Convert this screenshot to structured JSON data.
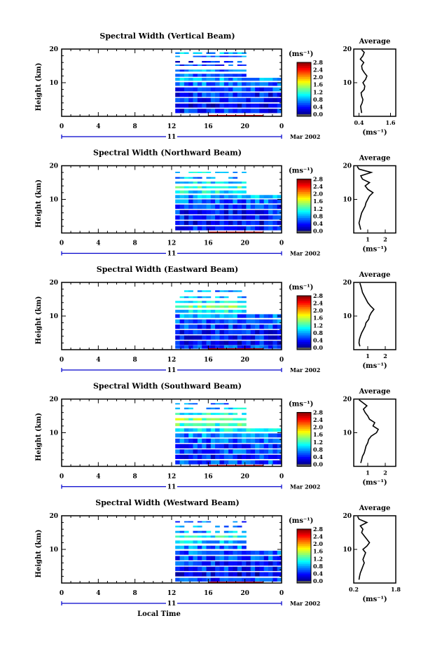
{
  "chart_data": [
    {
      "type": "heatmap",
      "title": "Spectral Width (Vertical Beam)",
      "ylabel": "Height (km)",
      "xlim": [
        0,
        24
      ],
      "ylim": [
        0,
        20
      ],
      "x_ticks": [
        "0",
        "4",
        "8",
        "12",
        "16",
        "20",
        "0"
      ],
      "y_ticks": [
        "20",
        "10"
      ],
      "date_label": "11",
      "month_label": "Mar 2002",
      "colorbar": {
        "unit": "(ms⁻¹)",
        "ticks": [
          "2.8",
          "2.4",
          "2.0",
          "1.6",
          "1.2",
          "0.8",
          "0.4",
          "0.0"
        ]
      },
      "data_start_hour": 12.4,
      "gap": {
        "x": [
          20,
          24
        ],
        "y": [
          11,
          19.5
        ]
      },
      "rows": [
        {
          "y": 18.8,
          "v": 0.8,
          "w": 0.5
        },
        {
          "y": 17.8,
          "v": 0.6,
          "w": 0.4
        },
        {
          "y": 16.2,
          "v": 0.4,
          "w": 0.5
        },
        {
          "y": 15.2,
          "v": 0.5,
          "w": 0.4
        },
        {
          "y": 13.6,
          "v": 0.7,
          "w": 0.6
        },
        {
          "y": 12.2,
          "v": 0.6,
          "w": 0.9
        },
        {
          "y": 11.0,
          "v": 0.8,
          "w": 0.9
        },
        {
          "y": 9.6,
          "v": 0.6,
          "w": 1.1
        },
        {
          "y": 8.0,
          "v": 0.5,
          "w": 1.2
        },
        {
          "y": 6.4,
          "v": 0.4,
          "w": 1.3
        },
        {
          "y": 4.8,
          "v": 0.4,
          "w": 1.3
        },
        {
          "y": 3.2,
          "v": 0.3,
          "w": 1.2
        },
        {
          "y": 1.6,
          "v": 0.4,
          "w": 1.3
        }
      ],
      "average": {
        "title": "Average",
        "xlabel": "(ms⁻¹)",
        "x_ticks": [
          "0.4",
          "1.6"
        ],
        "xlim": [
          0.2,
          1.8
        ],
        "y_ticks": [
          "20",
          "10"
        ],
        "y": [
          1,
          2,
          3,
          4,
          5,
          6,
          7,
          8,
          9,
          10,
          11,
          12,
          13,
          14,
          15,
          16,
          17,
          18,
          19,
          19.8
        ],
        "x": [
          0.5,
          0.48,
          0.46,
          0.52,
          0.55,
          0.5,
          0.48,
          0.6,
          0.62,
          0.55,
          0.65,
          0.7,
          0.6,
          0.52,
          0.5,
          0.58,
          0.45,
          0.55,
          0.6,
          0.5
        ]
      }
    },
    {
      "type": "heatmap",
      "title": "Spectral Width (Northward Beam)",
      "ylabel": "Height (km)",
      "xlim": [
        0,
        24
      ],
      "ylim": [
        0,
        20
      ],
      "x_ticks": [
        "0",
        "4",
        "8",
        "12",
        "16",
        "20",
        "0"
      ],
      "y_ticks": [
        "20",
        "10"
      ],
      "date_label": "11",
      "month_label": "Mar 2002",
      "colorbar": {
        "unit": "(ms⁻¹)",
        "ticks": [
          "2.8",
          "2.4",
          "2.0",
          "1.6",
          "1.2",
          "0.8",
          "0.4",
          "0.0"
        ]
      },
      "data_start_hour": 12.4,
      "gap": {
        "x": [
          20,
          24
        ],
        "y": [
          11,
          19.5
        ]
      },
      "rows": [
        {
          "y": 18.0,
          "v": 0.9,
          "w": 0.4
        },
        {
          "y": 16.4,
          "v": 0.8,
          "w": 0.5
        },
        {
          "y": 15.0,
          "v": 1.0,
          "w": 0.6
        },
        {
          "y": 13.6,
          "v": 1.2,
          "w": 0.6
        },
        {
          "y": 12.2,
          "v": 1.0,
          "w": 0.9
        },
        {
          "y": 10.8,
          "v": 0.8,
          "w": 1.0
        },
        {
          "y": 9.4,
          "v": 0.6,
          "w": 1.2
        },
        {
          "y": 7.8,
          "v": 0.5,
          "w": 1.3
        },
        {
          "y": 6.2,
          "v": 0.4,
          "w": 1.3
        },
        {
          "y": 4.6,
          "v": 0.4,
          "w": 1.3
        },
        {
          "y": 3.0,
          "v": 0.3,
          "w": 1.3
        },
        {
          "y": 1.4,
          "v": 0.4,
          "w": 1.2
        }
      ],
      "average": {
        "title": "Average",
        "xlabel": "(ms⁻¹)",
        "x_ticks": [
          "1",
          "2"
        ],
        "xlim": [
          0.2,
          2.6
        ],
        "y_ticks": [
          "20",
          "10"
        ],
        "y": [
          1,
          2,
          3,
          4,
          5,
          6,
          7,
          8,
          9,
          10,
          11,
          12,
          13,
          14,
          15,
          16,
          17,
          18,
          19,
          19.8
        ],
        "x": [
          0.6,
          0.55,
          0.5,
          0.55,
          0.6,
          0.65,
          0.75,
          0.85,
          0.9,
          1.0,
          1.1,
          1.3,
          1.0,
          0.85,
          1.1,
          0.7,
          0.6,
          1.2,
          0.5,
          0.4
        ]
      }
    },
    {
      "type": "heatmap",
      "title": "Spectral Width (Eastward Beam)",
      "ylabel": "Height (km)",
      "xlim": [
        0,
        24
      ],
      "ylim": [
        0,
        20
      ],
      "x_ticks": [
        "0",
        "4",
        "8",
        "12",
        "16",
        "20",
        "0"
      ],
      "y_ticks": [
        "20",
        "10"
      ],
      "date_label": "11",
      "month_label": "Mar 2002",
      "colorbar": {
        "unit": "(ms⁻¹)",
        "ticks": [
          "2.8",
          "2.4",
          "2.0",
          "1.6",
          "1.2",
          "0.8",
          "0.4",
          "0.0"
        ]
      },
      "data_start_hour": 12.4,
      "gap": {
        "x": [
          20,
          24
        ],
        "y": [
          11,
          19.5
        ]
      },
      "rows": [
        {
          "y": 17.4,
          "v": 0.7,
          "w": 0.5
        },
        {
          "y": 15.6,
          "v": 0.8,
          "w": 0.5
        },
        {
          "y": 14.2,
          "v": 1.0,
          "w": 0.6
        },
        {
          "y": 12.8,
          "v": 1.3,
          "w": 0.7
        },
        {
          "y": 11.4,
          "v": 1.0,
          "w": 0.9
        },
        {
          "y": 10.0,
          "v": 0.7,
          "w": 1.1
        },
        {
          "y": 8.4,
          "v": 0.6,
          "w": 1.2
        },
        {
          "y": 6.8,
          "v": 0.5,
          "w": 1.3
        },
        {
          "y": 5.2,
          "v": 0.4,
          "w": 1.3
        },
        {
          "y": 3.6,
          "v": 0.4,
          "w": 1.3
        },
        {
          "y": 2.0,
          "v": 0.3,
          "w": 1.3
        },
        {
          "y": 0.8,
          "v": 0.5,
          "w": 1.0
        }
      ],
      "average": {
        "title": "Average",
        "xlabel": "(ms⁻¹)",
        "x_ticks": [
          "1",
          "2"
        ],
        "xlim": [
          0.2,
          2.6
        ],
        "y_ticks": [
          "20",
          "10"
        ],
        "y": [
          1,
          2,
          3,
          4,
          5,
          6,
          7,
          8,
          9,
          10,
          11,
          12,
          13,
          14,
          15,
          16,
          17,
          18,
          19,
          19.8
        ],
        "x": [
          0.55,
          0.5,
          0.52,
          0.58,
          0.65,
          0.75,
          0.85,
          0.9,
          1.05,
          1.1,
          1.2,
          1.35,
          1.15,
          1.0,
          0.9,
          0.8,
          0.7,
          0.65,
          0.6,
          0.55
        ]
      }
    },
    {
      "type": "heatmap",
      "title": "Spectral Width (Southward Beam)",
      "ylabel": "Height (km)",
      "xlim": [
        0,
        24
      ],
      "ylim": [
        0,
        20
      ],
      "x_ticks": [
        "0",
        "4",
        "8",
        "12",
        "16",
        "20",
        "0"
      ],
      "y_ticks": [
        "20",
        "10"
      ],
      "date_label": "11",
      "month_label": "Mar 2002",
      "colorbar": {
        "unit": "(ms⁻¹)",
        "ticks": [
          "2.8",
          "2.4",
          "2.0",
          "1.6",
          "1.2",
          "0.8",
          "0.4",
          "0.0"
        ]
      },
      "data_start_hour": 12.4,
      "gap": {
        "x": [
          20,
          24
        ],
        "y": [
          11,
          19.5
        ]
      },
      "rows": [
        {
          "y": 18.6,
          "v": 0.7,
          "w": 0.4
        },
        {
          "y": 17.2,
          "v": 0.9,
          "w": 0.5
        },
        {
          "y": 15.6,
          "v": 1.1,
          "w": 0.6
        },
        {
          "y": 14.0,
          "v": 1.4,
          "w": 0.7
        },
        {
          "y": 12.4,
          "v": 1.2,
          "w": 0.9
        },
        {
          "y": 10.8,
          "v": 1.0,
          "w": 1.0
        },
        {
          "y": 9.2,
          "v": 0.7,
          "w": 1.2
        },
        {
          "y": 7.6,
          "v": 0.6,
          "w": 1.3
        },
        {
          "y": 6.0,
          "v": 0.5,
          "w": 1.3
        },
        {
          "y": 4.4,
          "v": 0.5,
          "w": 1.3
        },
        {
          "y": 2.8,
          "v": 0.4,
          "w": 1.3
        },
        {
          "y": 1.2,
          "v": 0.5,
          "w": 1.2
        }
      ],
      "average": {
        "title": "Average",
        "xlabel": "(ms⁻¹)",
        "x_ticks": [
          "1",
          "2"
        ],
        "xlim": [
          0.2,
          2.6
        ],
        "y_ticks": [
          "20",
          "10"
        ],
        "y": [
          1,
          2,
          3,
          4,
          5,
          6,
          7,
          8,
          9,
          10,
          11,
          12,
          13,
          14,
          15,
          16,
          17,
          18,
          19,
          19.8
        ],
        "x": [
          0.6,
          0.65,
          0.7,
          0.8,
          0.85,
          0.9,
          1.0,
          1.05,
          1.2,
          1.5,
          1.6,
          1.3,
          1.4,
          1.1,
          1.0,
          0.85,
          0.75,
          0.95,
          0.7,
          0.5
        ]
      }
    },
    {
      "type": "heatmap",
      "title": "Spectral Width (Westward Beam)",
      "ylabel": "Height (km)",
      "xlabel": "Local Time",
      "xlim": [
        0,
        24
      ],
      "ylim": [
        0,
        20
      ],
      "x_ticks": [
        "0",
        "4",
        "8",
        "12",
        "16",
        "20",
        "0"
      ],
      "y_ticks": [
        "20",
        "10"
      ],
      "date_label": "11",
      "month_label": "Mar 2002",
      "colorbar": {
        "unit": "(ms⁻¹)",
        "ticks": [
          "2.8",
          "2.4",
          "2.0",
          "1.6",
          "1.2",
          "0.8",
          "0.4",
          "0.0"
        ]
      },
      "data_start_hour": 12.4,
      "gap": {
        "x": [
          20,
          24
        ],
        "y": [
          10,
          19.5
        ]
      },
      "rows": [
        {
          "y": 18.2,
          "v": 0.6,
          "w": 0.4
        },
        {
          "y": 16.8,
          "v": 0.7,
          "w": 0.5
        },
        {
          "y": 15.2,
          "v": 0.8,
          "w": 0.6
        },
        {
          "y": 13.8,
          "v": 1.1,
          "w": 0.6
        },
        {
          "y": 12.2,
          "v": 0.9,
          "w": 0.9
        },
        {
          "y": 10.6,
          "v": 0.7,
          "w": 1.0
        },
        {
          "y": 9.0,
          "v": 0.6,
          "w": 1.2
        },
        {
          "y": 7.4,
          "v": 0.5,
          "w": 1.3
        },
        {
          "y": 5.8,
          "v": 0.4,
          "w": 1.3
        },
        {
          "y": 4.2,
          "v": 0.4,
          "w": 1.3
        },
        {
          "y": 2.6,
          "v": 0.3,
          "w": 1.3
        },
        {
          "y": 1.0,
          "v": 0.5,
          "w": 1.1
        }
      ],
      "average": {
        "title": "Average",
        "xlabel": "(ms⁻¹)",
        "x_ticks": [
          "0.2",
          "1.8"
        ],
        "xlim": [
          0.2,
          1.8
        ],
        "y_ticks": [
          "20",
          "10"
        ],
        "y": [
          1,
          2,
          3,
          4,
          5,
          6,
          7,
          8,
          9,
          10,
          11,
          12,
          13,
          14,
          15,
          16,
          17,
          18,
          19,
          19.8
        ],
        "x": [
          0.4,
          0.42,
          0.45,
          0.5,
          0.55,
          0.6,
          0.55,
          0.6,
          0.65,
          0.55,
          0.7,
          0.8,
          0.7,
          0.6,
          0.5,
          0.55,
          0.45,
          0.7,
          0.4,
          0.35
        ]
      }
    }
  ]
}
